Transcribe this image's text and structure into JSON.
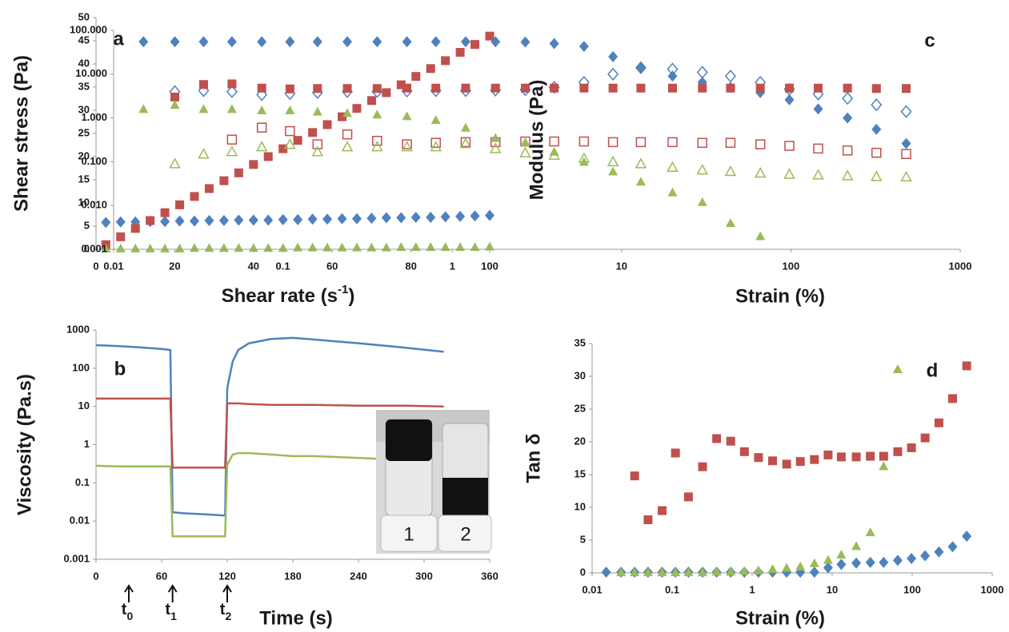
{
  "chart_data": [
    {
      "type": "scatter",
      "annotation": "a",
      "xlabel": {
        "text": "Shear rate (s",
        "sup": "-1",
        "end": ")"
      },
      "ylabel": "Shear stress (Pa)",
      "xlim": [
        0,
        100
      ],
      "ylim": [
        0,
        50
      ],
      "xticks": [
        0,
        20,
        40,
        60,
        80,
        100
      ],
      "yticks": [
        0,
        5,
        10,
        15,
        20,
        25,
        30,
        35,
        40,
        45,
        50
      ],
      "x": [
        2.5,
        6.25,
        10,
        13.75,
        17.5,
        21.25,
        25,
        28.75,
        32.5,
        36.25,
        40,
        43.75,
        47.5,
        51.25,
        55,
        58.75,
        62.5,
        66.25,
        70,
        73.75,
        77.5,
        81.25,
        85,
        88.75,
        92.5,
        96.25,
        100
      ],
      "series": [
        {
          "color": "#4f81bd",
          "marker": "diamond",
          "filled": true,
          "values": [
            5.8,
            5.9,
            5.9,
            6.0,
            6.0,
            6.1,
            6.1,
            6.2,
            6.2,
            6.3,
            6.3,
            6.3,
            6.4,
            6.4,
            6.5,
            6.5,
            6.6,
            6.6,
            6.7,
            6.8,
            6.8,
            6.9,
            6.9,
            7.0,
            7.1,
            7.2,
            7.3
          ]
        },
        {
          "color": "#c0504d",
          "marker": "square",
          "filled": true,
          "values": [
            1,
            2.7,
            4.5,
            6.2,
            7.9,
            9.6,
            11.4,
            13.1,
            14.8,
            16.5,
            18.3,
            20,
            21.7,
            23.5,
            25.2,
            26.9,
            28.6,
            30.4,
            32.1,
            33.8,
            35.5,
            37.3,
            39,
            40.7,
            42.5,
            44.2,
            46
          ]
        },
        {
          "color": "#9bbb59",
          "marker": "triangle",
          "filled": true,
          "values": [
            0.2,
            0.2,
            0.2,
            0.2,
            0.2,
            0.2,
            0.3,
            0.3,
            0.3,
            0.3,
            0.3,
            0.3,
            0.3,
            0.4,
            0.4,
            0.4,
            0.4,
            0.4,
            0.4,
            0.4,
            0.5,
            0.5,
            0.5,
            0.5,
            0.5,
            0.5,
            0.6
          ]
        }
      ]
    },
    {
      "type": "line",
      "annotation": "b",
      "xlabel": "Time (s)",
      "ylabel": "Viscosity (Pa.s)",
      "xlim": [
        0,
        360
      ],
      "ylim": [
        0.001,
        1000
      ],
      "log_y": true,
      "xticks": [
        0,
        60,
        120,
        180,
        240,
        300,
        360
      ],
      "yticks": [
        0.001,
        0.01,
        0.1,
        1,
        10,
        100,
        1000
      ],
      "x": [
        0,
        20,
        40,
        60,
        68,
        70,
        80,
        100,
        118,
        120,
        125,
        130,
        140,
        160,
        180,
        200,
        240,
        280,
        318
      ],
      "series": [
        {
          "color": "#4f81bd",
          "values": [
            400,
            380,
            350,
            320,
            300,
            0.017,
            0.016,
            0.015,
            0.014,
            30,
            150,
            300,
            450,
            580,
            620,
            560,
            450,
            350,
            270
          ]
        },
        {
          "color": "#c0504d",
          "values": [
            16,
            16,
            16,
            16,
            16,
            0.25,
            0.25,
            0.25,
            0.25,
            12,
            12,
            12,
            11.5,
            11,
            11,
            11,
            10.5,
            10.5,
            10
          ]
        },
        {
          "color": "#9bbb59",
          "values": [
            0.28,
            0.27,
            0.27,
            0.27,
            0.27,
            0.004,
            0.004,
            0.004,
            0.004,
            0.3,
            0.55,
            0.6,
            0.6,
            0.55,
            0.5,
            0.5,
            0.45,
            0.4,
            0.35
          ]
        }
      ],
      "markers": [
        {
          "x": 30,
          "label": "t",
          "sub": "0"
        },
        {
          "x": 70,
          "label": "t",
          "sub": "1"
        },
        {
          "x": 120,
          "label": "t",
          "sub": "2"
        }
      ],
      "inset_labels": [
        "1",
        "2"
      ]
    },
    {
      "type": "scatter",
      "annotation": "c",
      "xlabel": "Strain (%)",
      "ylabel": "Modulus (Pa)",
      "xlim": [
        0.01,
        1000
      ],
      "ylim": [
        0.001,
        100
      ],
      "log_x": true,
      "log_y": true,
      "xticks": [
        0.01,
        0.1,
        1,
        10,
        100,
        1000
      ],
      "yticks": [
        {
          "value": 0.001,
          "label": "0.001"
        },
        {
          "value": 0.01,
          "label": "0.010"
        },
        {
          "value": 0.1,
          "label": "0.100"
        },
        {
          "value": 1,
          "label": "1.000"
        },
        {
          "value": 10,
          "label": "10.000"
        },
        {
          "value": 100,
          "label": "100.000"
        }
      ],
      "series": [
        {
          "color": "#4f81bd",
          "marker": "diamond",
          "filled": true,
          "x": [
            0.015,
            0.023,
            0.034,
            0.05,
            0.075,
            0.11,
            0.16,
            0.24,
            0.36,
            0.54,
            0.8,
            1.2,
            1.8,
            2.7,
            4,
            6,
            8.9,
            13,
            20,
            30,
            44,
            66,
            98,
            145,
            216,
            320,
            480
          ],
          "values": [
            55,
            55,
            55,
            55,
            55,
            55,
            55,
            55,
            55,
            55,
            55,
            55,
            55,
            54,
            50,
            43,
            25,
            14,
            9,
            6.5,
            5,
            3.8,
            2.6,
            1.6,
            1.0,
            0.55,
            0.26
          ]
        },
        {
          "color": "#4f81bd",
          "marker": "diamond",
          "filled": false,
          "x": [
            0.023,
            0.034,
            0.05,
            0.075,
            0.11,
            0.16,
            0.24,
            0.36,
            0.54,
            0.8,
            1.2,
            1.8,
            2.7,
            4,
            6,
            8.9,
            13,
            20,
            30,
            44,
            66,
            98,
            145,
            216,
            320,
            480
          ],
          "values": [
            4,
            4.2,
            4,
            3.4,
            3.6,
            3.8,
            4,
            4,
            4.1,
            4.2,
            4.2,
            4.3,
            4.4,
            5,
            6.5,
            10,
            14,
            13,
            11,
            9,
            6.5,
            4.5,
            3.5,
            2.8,
            2,
            1.4
          ]
        },
        {
          "color": "#c0504d",
          "marker": "square",
          "filled": true,
          "x": [
            0.023,
            0.034,
            0.05,
            0.075,
            0.11,
            0.16,
            0.24,
            0.36,
            0.54,
            0.8,
            1.2,
            1.8,
            2.7,
            4,
            6,
            8.9,
            13,
            20,
            30,
            44,
            66,
            98,
            145,
            216,
            320,
            480
          ],
          "values": [
            3,
            5.8,
            6,
            4.8,
            4.6,
            4.7,
            4.7,
            4.7,
            4.8,
            4.8,
            4.8,
            4.8,
            4.8,
            4.8,
            4.8,
            4.8,
            4.8,
            4.8,
            4.8,
            4.8,
            4.8,
            4.8,
            4.8,
            4.8,
            4.7,
            4.7
          ]
        },
        {
          "color": "#c0504d",
          "marker": "square",
          "filled": false,
          "x": [
            0.05,
            0.075,
            0.11,
            0.16,
            0.24,
            0.36,
            0.54,
            0.8,
            1.2,
            1.8,
            2.7,
            4,
            6,
            8.9,
            13,
            20,
            30,
            44,
            66,
            98,
            145,
            216,
            320,
            480
          ],
          "values": [
            0.32,
            0.6,
            0.5,
            0.25,
            0.42,
            0.3,
            0.25,
            0.27,
            0.28,
            0.28,
            0.29,
            0.29,
            0.29,
            0.28,
            0.28,
            0.28,
            0.27,
            0.27,
            0.25,
            0.23,
            0.2,
            0.18,
            0.16,
            0.15
          ]
        },
        {
          "color": "#9bbb59",
          "marker": "triangle",
          "filled": true,
          "x": [
            0.015,
            0.023,
            0.034,
            0.05,
            0.075,
            0.11,
            0.16,
            0.24,
            0.36,
            0.54,
            0.8,
            1.2,
            1.8,
            2.7,
            4,
            6,
            8.9,
            13,
            20,
            30,
            44,
            66
          ],
          "values": [
            1.6,
            2,
            1.6,
            1.6,
            1.5,
            1.5,
            1.4,
            1.3,
            1.2,
            1.1,
            0.9,
            0.6,
            0.35,
            0.28,
            0.17,
            0.1,
            0.06,
            0.035,
            0.02,
            0.012,
            0.004,
            0.002
          ]
        },
        {
          "color": "#9bbb59",
          "marker": "triangle",
          "filled": false,
          "x": [
            0.023,
            0.034,
            0.05,
            0.075,
            0.11,
            0.16,
            0.24,
            0.36,
            0.54,
            0.8,
            1.2,
            1.8,
            2.7,
            4,
            6,
            8.9,
            13,
            20,
            30,
            44,
            66,
            98,
            145,
            216,
            320,
            480
          ],
          "values": [
            0.09,
            0.15,
            0.17,
            0.22,
            0.25,
            0.17,
            0.22,
            0.22,
            0.22,
            0.22,
            0.26,
            0.2,
            0.16,
            0.14,
            0.12,
            0.1,
            0.09,
            0.075,
            0.065,
            0.06,
            0.055,
            0.052,
            0.05,
            0.048,
            0.046,
            0.045
          ]
        }
      ]
    },
    {
      "type": "scatter",
      "annotation": "d",
      "xlabel": "Strain (%)",
      "ylabel": "Tan δ",
      "xlim": [
        0.01,
        1000
      ],
      "ylim": [
        0,
        35
      ],
      "log_x": true,
      "xticks": [
        0.01,
        0.1,
        1,
        10,
        100,
        1000
      ],
      "yticks": [
        0,
        5,
        10,
        15,
        20,
        25,
        30,
        35
      ],
      "series": [
        {
          "color": "#4f81bd",
          "marker": "diamond",
          "filled": true,
          "x": [
            0.015,
            0.023,
            0.034,
            0.05,
            0.075,
            0.11,
            0.16,
            0.24,
            0.36,
            0.54,
            0.8,
            1.2,
            1.8,
            2.7,
            4,
            6,
            8.9,
            13,
            20,
            30,
            44,
            66,
            98,
            145,
            216,
            320,
            480
          ],
          "values": [
            0.1,
            0.1,
            0.1,
            0.1,
            0.1,
            0.1,
            0.1,
            0.1,
            0.1,
            0.1,
            0.1,
            0.1,
            0.1,
            0.1,
            0.1,
            0.1,
            0.8,
            1.3,
            1.5,
            1.6,
            1.6,
            1.9,
            2.2,
            2.6,
            3.2,
            4,
            5.6
          ]
        },
        {
          "color": "#c0504d",
          "marker": "square",
          "filled": true,
          "x": [
            0.034,
            0.05,
            0.075,
            0.11,
            0.16,
            0.24,
            0.36,
            0.54,
            0.8,
            1.2,
            1.8,
            2.7,
            4,
            6,
            8.9,
            13,
            20,
            30,
            44,
            66,
            98,
            145,
            216,
            320,
            480
          ],
          "values": [
            14.8,
            8.1,
            9.5,
            18.3,
            11.6,
            16.2,
            20.5,
            20.1,
            18.5,
            17.6,
            17.1,
            16.6,
            17,
            17.3,
            18,
            17.7,
            17.7,
            17.8,
            17.8,
            18.5,
            19.1,
            20.6,
            22.9,
            26.6,
            31.6
          ]
        },
        {
          "color": "#9bbb59",
          "marker": "triangle",
          "filled": true,
          "x": [
            0.023,
            0.034,
            0.05,
            0.075,
            0.11,
            0.16,
            0.24,
            0.36,
            0.54,
            0.8,
            1.2,
            1.8,
            2.7,
            4,
            6,
            8.9,
            13,
            20,
            30,
            44,
            66
          ],
          "values": [
            0.1,
            0.1,
            0.1,
            0.1,
            0.1,
            0.1,
            0.1,
            0.2,
            0.2,
            0.3,
            0.4,
            0.6,
            0.8,
            1,
            1.5,
            2,
            2.8,
            4.1,
            6.2,
            16.3,
            31.1
          ]
        }
      ]
    }
  ]
}
